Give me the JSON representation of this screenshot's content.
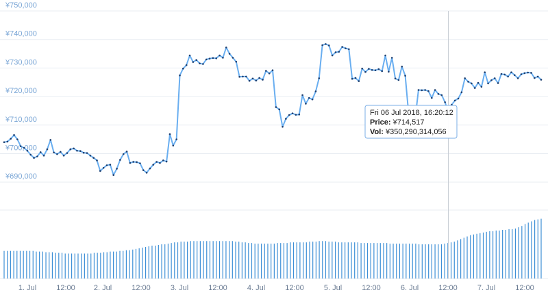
{
  "colors": {
    "line": "#69aef0",
    "marker": "#1f3f6e",
    "volume": "#3d8fd6",
    "grid": "#e9edf2",
    "ytick": "#7aa6d6",
    "xtick": "#6b7c93",
    "crosshair": "#c7ccd3",
    "tooltip_border": "#7aaee6"
  },
  "chart_data": [
    {
      "type": "line",
      "ylim": [
        685000,
        750000
      ],
      "yticks": [
        "¥690,000",
        "¥700,000",
        "¥710,000",
        "¥720,000",
        "¥730,000",
        "¥740,000",
        "¥750,000"
      ],
      "xticks": [
        "1. Jul",
        "12:00",
        "2. Jul",
        "12:00",
        "3. Jul",
        "12:00",
        "4. Jul",
        "12:00",
        "5. Jul",
        "12:00",
        "6. Jul",
        "12:00",
        "7. Jul",
        "12:00"
      ],
      "grid": true,
      "series": [
        {
          "values": [
            704000,
            704200,
            705200,
            706500,
            705000,
            702600,
            702000,
            701000,
            699600,
            698500,
            699000,
            700500,
            699300,
            701500,
            704800,
            700400,
            699800,
            700600,
            699300,
            700200,
            701500,
            701800,
            701000,
            700900,
            700300,
            700200,
            699300,
            698500,
            697600,
            693900,
            695000,
            695900,
            696100,
            692500,
            694700,
            697800,
            699800,
            700700,
            696700,
            697100,
            697000,
            696600,
            694200,
            693300,
            694800,
            696100,
            697100,
            696700,
            697600,
            697200,
            706800,
            702800,
            705000,
            727400,
            729800,
            731000,
            734400,
            732100,
            732800,
            731600,
            731400,
            733000,
            733300,
            733500,
            733400,
            734400,
            733600,
            737200,
            735000,
            733600,
            732200,
            726900,
            727000,
            727000,
            725500,
            726300,
            725600,
            726500,
            725900,
            729000,
            728100,
            729200,
            716300,
            715500,
            709400,
            712200,
            713500,
            714100,
            713600,
            713700,
            720500,
            717500,
            719500,
            719000,
            721800,
            726400,
            738000,
            738400,
            737900,
            734400,
            735500,
            735700,
            737400,
            736900,
            736600,
            726200,
            726500,
            725400,
            729800,
            728600,
            729700,
            729300,
            729200,
            729600,
            728900,
            734400,
            728700,
            733600,
            726300,
            725800,
            730500,
            727300,
            714300,
            714700,
            712400,
            722300,
            722200,
            722300,
            721900,
            719500,
            722300,
            720900,
            720500,
            718000,
            714517,
            717100,
            718600,
            719300,
            721500,
            726400,
            725200,
            724600,
            723000,
            724800,
            723400,
            728500,
            724600,
            725700,
            726400,
            724700,
            727900,
            727700,
            727000,
            728500,
            727500,
            726400,
            727800,
            728200,
            728400,
            728300,
            726500,
            727000,
            725900
          ]
        }
      ]
    },
    {
      "type": "bar",
      "series": [
        {
          "values": [
            0.42,
            0.42,
            0.42,
            0.42,
            0.42,
            0.42,
            0.42,
            0.42,
            0.42,
            0.42,
            0.41,
            0.41,
            0.41,
            0.4,
            0.4,
            0.4,
            0.39,
            0.39,
            0.39,
            0.38,
            0.38,
            0.38,
            0.38,
            0.38,
            0.38,
            0.38,
            0.38,
            0.38,
            0.39,
            0.39,
            0.39,
            0.4,
            0.4,
            0.41,
            0.41,
            0.41,
            0.42,
            0.42,
            0.43,
            0.43,
            0.44,
            0.45,
            0.46,
            0.47,
            0.48,
            0.49,
            0.5,
            0.5,
            0.51,
            0.52,
            0.52,
            0.53,
            0.54,
            0.55,
            0.55,
            0.56,
            0.56,
            0.56,
            0.57,
            0.57,
            0.57,
            0.57,
            0.57,
            0.57,
            0.57,
            0.57,
            0.57,
            0.57,
            0.57,
            0.57,
            0.57,
            0.57,
            0.56,
            0.56,
            0.55,
            0.55,
            0.54,
            0.54,
            0.53,
            0.53,
            0.53,
            0.53,
            0.53,
            0.53,
            0.53,
            0.54,
            0.54,
            0.54,
            0.54,
            0.55,
            0.55,
            0.55,
            0.55,
            0.55,
            0.55,
            0.56,
            0.56,
            0.56,
            0.57,
            0.57,
            0.57,
            0.56,
            0.56,
            0.56,
            0.55,
            0.55,
            0.55,
            0.55,
            0.55,
            0.55,
            0.55,
            0.54,
            0.54,
            0.54,
            0.54,
            0.54,
            0.54,
            0.54,
            0.54,
            0.54,
            0.53,
            0.53,
            0.53,
            0.53,
            0.53,
            0.53,
            0.53,
            0.53,
            0.53,
            0.52,
            0.52,
            0.52,
            0.52,
            0.52,
            0.52,
            0.52,
            0.52,
            0.53,
            0.54,
            0.55,
            0.56,
            0.58,
            0.6,
            0.62,
            0.64,
            0.66,
            0.67,
            0.68,
            0.69,
            0.7,
            0.71,
            0.72,
            0.72,
            0.73,
            0.73,
            0.74,
            0.74,
            0.75,
            0.75,
            0.76,
            0.78,
            0.8,
            0.83,
            0.85,
            0.87,
            0.89,
            0.9,
            0.91
          ]
        }
      ]
    }
  ],
  "tooltip": {
    "time": "Fri 06 Jul 2018, 16:20:12",
    "price_label": "Price:",
    "price_value": "¥714,517",
    "vol_label": "Vol:",
    "vol_value": "¥350,290,314,056"
  }
}
